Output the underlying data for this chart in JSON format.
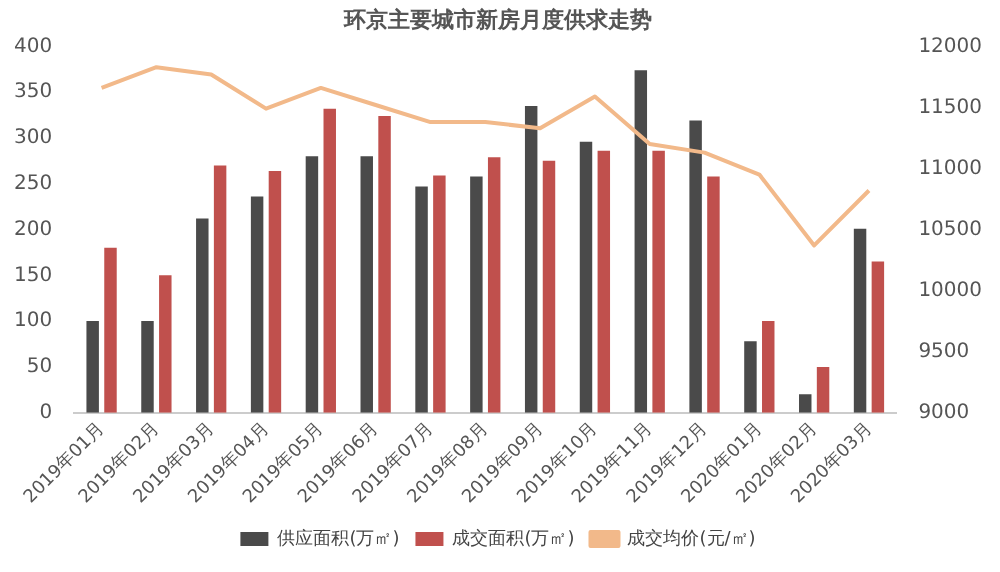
{
  "chart_data": {
    "type": "bar",
    "title": "环京主要城市新房月度供求走势",
    "categories": [
      "2019年01月",
      "2019年02月",
      "2019年03月",
      "2019年04月",
      "2019年05月",
      "2019年06月",
      "2019年07月",
      "2019年08月",
      "2019年09月",
      "2019年10月",
      "2019年11月",
      "2019年12月",
      "2020年01月",
      "2020年02月",
      "2020年03月"
    ],
    "series": [
      {
        "name": "供应面积(万㎡)",
        "color": "#4a4a4a",
        "values": [
          100,
          100,
          212,
          236,
          280,
          280,
          247,
          258,
          335,
          296,
          374,
          319,
          78,
          20,
          201
        ]
      },
      {
        "name": "成交面积(万㎡)",
        "color": "#c0504d",
        "values": [
          180,
          150,
          270,
          264,
          332,
          324,
          259,
          279,
          275,
          286,
          286,
          258,
          100,
          50,
          165
        ]
      },
      {
        "name": "成交均价(元/㎡)",
        "type": "line",
        "axis": "y2",
        "color": "#f2b98a",
        "values": [
          11660,
          11830,
          11770,
          11490,
          11660,
          11520,
          11380,
          11380,
          11330,
          11590,
          11200,
          11130,
          10950,
          10370,
          10820
        ]
      }
    ],
    "ylim": [
      0,
      400
    ],
    "yticks": [
      0,
      50,
      100,
      150,
      200,
      250,
      300,
      350,
      400
    ],
    "y2lim": [
      9000,
      12000
    ],
    "y2ticks": [
      9000,
      9500,
      10000,
      10500,
      11000,
      11500,
      12000
    ],
    "grid": false,
    "legend": "bottom",
    "marker": "none",
    "line_style": "solid"
  }
}
